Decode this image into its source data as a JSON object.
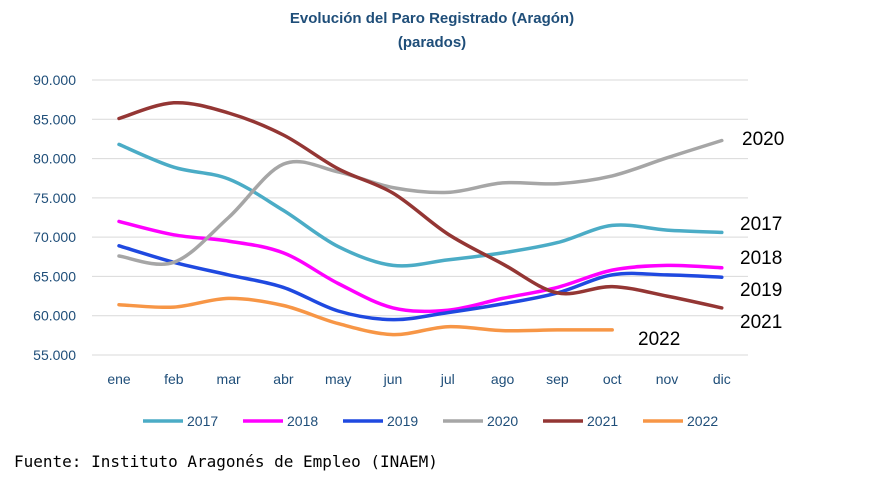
{
  "chart_data": {
    "type": "line",
    "title": "Evolución del Paro Registrado (Aragón)",
    "subtitle": "(parados)",
    "categories": [
      "ene",
      "feb",
      "mar",
      "abr",
      "may",
      "jun",
      "jul",
      "ago",
      "sep",
      "oct",
      "nov",
      "dic"
    ],
    "ylim": [
      55000,
      90000
    ],
    "yticks": [
      55000,
      60000,
      65000,
      70000,
      75000,
      80000,
      85000,
      90000
    ],
    "ytick_labels": [
      "55.000",
      "60.000",
      "65.000",
      "70.000",
      "75.000",
      "80.000",
      "85.000",
      "90.000"
    ],
    "grid": true,
    "legend_position": "bottom",
    "series": [
      {
        "name": "2017",
        "color": "#4bacc6",
        "values": [
          81800,
          78900,
          77400,
          73400,
          68800,
          66400,
          67100,
          68000,
          69300,
          71500,
          70900,
          70600
        ],
        "end_label": "2017"
      },
      {
        "name": "2018",
        "color": "#ff00ff",
        "values": [
          72000,
          70300,
          69500,
          68000,
          64100,
          61000,
          60700,
          62200,
          63600,
          65800,
          66400,
          66100
        ],
        "end_label": "2018"
      },
      {
        "name": "2019",
        "color": "#1f49e0",
        "values": [
          68900,
          66800,
          65200,
          63600,
          60600,
          59500,
          60400,
          61500,
          62900,
          65200,
          65200,
          64900
        ],
        "end_label": "2019"
      },
      {
        "name": "2020",
        "color": "#a6a6a6",
        "values": [
          67600,
          66800,
          72500,
          79300,
          78300,
          76300,
          75700,
          76900,
          76800,
          77800,
          80100,
          82300
        ],
        "end_label": "2020"
      },
      {
        "name": "2021",
        "color": "#943634",
        "values": [
          85100,
          87100,
          85800,
          83000,
          78700,
          75600,
          70400,
          66600,
          62900,
          63700,
          62500,
          61000
        ],
        "end_label": "2021"
      },
      {
        "name": "2022",
        "color": "#f79646",
        "values": [
          61400,
          61100,
          62200,
          61300,
          59000,
          57600,
          58600,
          58100,
          58200,
          58200,
          null,
          null
        ],
        "end_label": "2022"
      }
    ]
  },
  "source": "Fuente: Instituto Aragonés de Empleo (INAEM)"
}
